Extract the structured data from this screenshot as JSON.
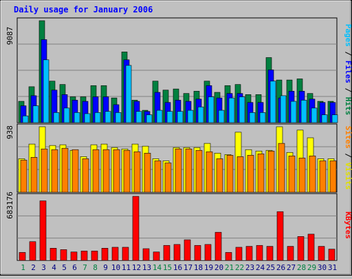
{
  "title": "Daily usage for January 2006",
  "colors": {
    "background": "#c0c0c0",
    "plot_bg": "#c0c0c0",
    "title": "#0000ff",
    "hits": "#008040",
    "files": "#0000ff",
    "pages": "#00c0ff",
    "visits": "#ffff00",
    "sites": "#ff8000",
    "kbytes": "#ff0000",
    "grid": "#808080",
    "weekday_label": "#000080",
    "weekend_label": "#008040"
  },
  "chart_data": [
    {
      "type": "bar",
      "panel": "hits-files-pages",
      "ymax_label": "9087",
      "ylim": [
        0,
        9087
      ],
      "legend": {
        "pages": "Pages",
        "sep1": " / ",
        "files": "Files",
        "sep2": " / ",
        "hits": "Hits"
      },
      "categories": [
        "1",
        "2",
        "3",
        "4",
        "5",
        "6",
        "7",
        "8",
        "9",
        "10",
        "11",
        "12",
        "13",
        "14",
        "15",
        "16",
        "17",
        "18",
        "19",
        "20",
        "21",
        "22",
        "23",
        "24",
        "25",
        "26",
        "27",
        "28",
        "29",
        "30",
        "31"
      ],
      "series": [
        {
          "name": "Hits",
          "values": [
            1900,
            3200,
            9087,
            3700,
            3400,
            2300,
            2300,
            3300,
            3300,
            2200,
            6300,
            2000,
            1100,
            3700,
            2900,
            3000,
            2600,
            2800,
            3700,
            2700,
            3300,
            3400,
            2500,
            2500,
            5800,
            3800,
            3800,
            3900,
            2600,
            1900,
            1900
          ]
        },
        {
          "name": "Files",
          "values": [
            1500,
            2400,
            7400,
            2900,
            2500,
            2000,
            1900,
            2300,
            2300,
            1600,
            5600,
            1900,
            1000,
            2700,
            1800,
            2000,
            1900,
            2100,
            3300,
            2200,
            2600,
            2600,
            1800,
            1800,
            4700,
            2200,
            2800,
            2800,
            2100,
            1800,
            1800
          ]
        },
        {
          "name": "Pages",
          "values": [
            600,
            1500,
            5600,
            900,
            1300,
            900,
            800,
            900,
            1000,
            900,
            5100,
            1000,
            700,
            1100,
            1000,
            1000,
            1100,
            1400,
            2300,
            1100,
            2200,
            2300,
            900,
            900,
            3700,
            2400,
            1900,
            2000,
            1300,
            700,
            700
          ]
        }
      ]
    },
    {
      "type": "bar",
      "panel": "visits-sites",
      "ymax_label": "938",
      "ylim": [
        0,
        938
      ],
      "legend": {
        "sites": "Sites",
        "sep": " / ",
        "visits": "Visits"
      },
      "categories": [
        "1",
        "2",
        "3",
        "4",
        "5",
        "6",
        "7",
        "8",
        "9",
        "10",
        "11",
        "12",
        "13",
        "14",
        "15",
        "16",
        "17",
        "18",
        "19",
        "20",
        "21",
        "22",
        "23",
        "24",
        "25",
        "26",
        "27",
        "28",
        "29",
        "30",
        "31"
      ],
      "series": [
        {
          "name": "Visits",
          "values": [
            480,
            690,
            938,
            670,
            680,
            600,
            510,
            680,
            690,
            640,
            620,
            690,
            660,
            480,
            450,
            640,
            640,
            640,
            700,
            560,
            540,
            860,
            610,
            590,
            600,
            938,
            570,
            890,
            780,
            480,
            480
          ]
        },
        {
          "name": "Sites",
          "values": [
            460,
            500,
            620,
            610,
            630,
            610,
            480,
            610,
            610,
            610,
            600,
            580,
            560,
            450,
            420,
            620,
            620,
            600,
            580,
            480,
            530,
            510,
            530,
            550,
            590,
            700,
            520,
            490,
            520,
            450,
            450
          ]
        }
      ]
    },
    {
      "type": "bar",
      "panel": "kbytes",
      "ymax_label": "683176",
      "ylim": [
        0,
        683176
      ],
      "legend": {
        "kbytes": "KBytes"
      },
      "categories": [
        "1",
        "2",
        "3",
        "4",
        "5",
        "6",
        "7",
        "8",
        "9",
        "10",
        "11",
        "12",
        "13",
        "14",
        "15",
        "16",
        "17",
        "18",
        "19",
        "20",
        "21",
        "22",
        "23",
        "24",
        "25",
        "26",
        "27",
        "28",
        "29",
        "30",
        "31"
      ],
      "series": [
        {
          "name": "KBytes",
          "values": [
            85000,
            200000,
            635000,
            130000,
            115000,
            90000,
            100000,
            100000,
            130000,
            140000,
            140000,
            683176,
            125000,
            90000,
            160000,
            170000,
            220000,
            160000,
            170000,
            300000,
            85000,
            140000,
            150000,
            160000,
            150000,
            520000,
            150000,
            255000,
            280000,
            150000,
            120000
          ]
        }
      ]
    }
  ],
  "x_labels": {
    "days": [
      "1",
      "2",
      "3",
      "4",
      "5",
      "6",
      "7",
      "8",
      "9",
      "10",
      "11",
      "12",
      "13",
      "14",
      "15",
      "16",
      "17",
      "18",
      "19",
      "20",
      "21",
      "22",
      "23",
      "24",
      "25",
      "26",
      "27",
      "28",
      "29",
      "30",
      "31"
    ],
    "weekend": [
      1,
      7,
      8,
      14,
      15,
      21,
      22,
      28,
      29
    ]
  }
}
